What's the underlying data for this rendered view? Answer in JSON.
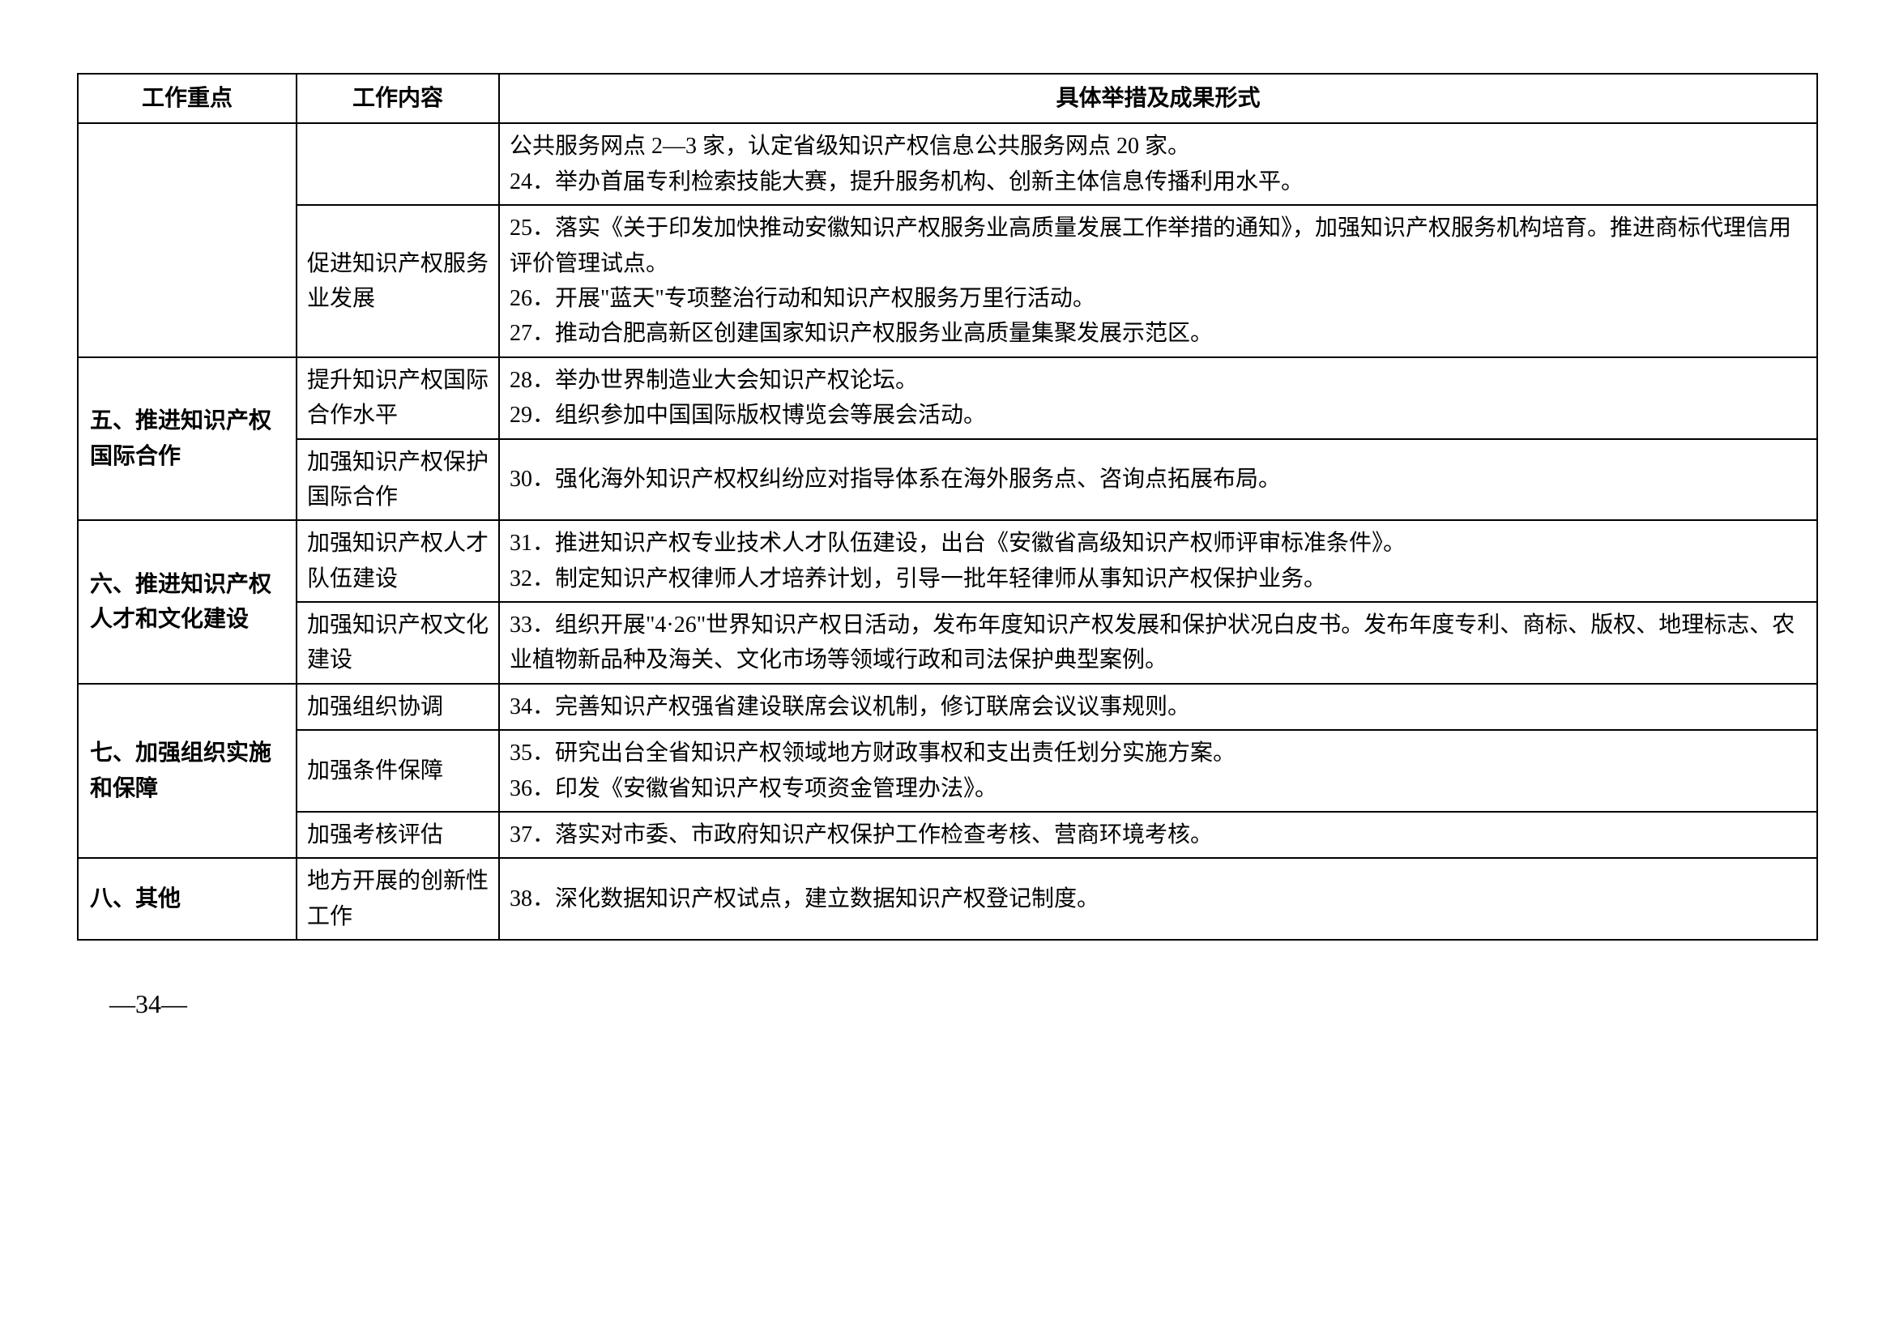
{
  "headers": {
    "focus": "工作重点",
    "content": "工作内容",
    "measures": "具体举措及成果形式"
  },
  "rows": [
    {
      "focus": "",
      "content": "",
      "measures": "公共服务网点 2—3 家，认定省级知识产权信息公共服务网点 20 家。\n24．举办首届专利检索技能大赛，提升服务机构、创新主体信息传播利用水平。",
      "focus_rowspan": 2,
      "has_focus": true,
      "has_content": true
    },
    {
      "content": "促进知识产权服务业发展",
      "measures": "25．落实《关于印发加快推动安徽知识产权服务业高质量发展工作举措的通知》，加强知识产权服务机构培育。推进商标代理信用评价管理试点。\n26．开展\"蓝天\"专项整治行动和知识产权服务万里行活动。\n27．推动合肥高新区创建国家知识产权服务业高质量集聚发展示范区。",
      "has_content": true
    },
    {
      "focus": "五、推进知识产权国际合作",
      "content": "提升知识产权国际合作水平",
      "measures": "28．举办世界制造业大会知识产权论坛。\n29．组织参加中国国际版权博览会等展会活动。",
      "focus_rowspan": 2,
      "has_focus": true,
      "has_content": true
    },
    {
      "content": "加强知识产权保护国际合作",
      "measures": "30．强化海外知识产权权纠纷应对指导体系在海外服务点、咨询点拓展布局。",
      "has_content": true
    },
    {
      "focus": "六、推进知识产权人才和文化建设",
      "content": "加强知识产权人才队伍建设",
      "measures": "31．推进知识产权专业技术人才队伍建设，出台《安徽省高级知识产权师评审标准条件》。\n32．制定知识产权律师人才培养计划，引导一批年轻律师从事知识产权保护业务。",
      "focus_rowspan": 2,
      "has_focus": true,
      "has_content": true
    },
    {
      "content": "加强知识产权文化建设",
      "measures": "33．组织开展\"4·26\"世界知识产权日活动，发布年度知识产权发展和保护状况白皮书。发布年度专利、商标、版权、地理标志、农业植物新品种及海关、文化市场等领域行政和司法保护典型案例。",
      "has_content": true
    },
    {
      "focus": "七、加强组织实施和保障",
      "content": "加强组织协调",
      "measures": "34．完善知识产权强省建设联席会议机制，修订联席会议议事规则。",
      "focus_rowspan": 3,
      "has_focus": true,
      "has_content": true
    },
    {
      "content": "加强条件保障",
      "measures": "35．研究出台全省知识产权领域地方财政事权和支出责任划分实施方案。\n36．印发《安徽省知识产权专项资金管理办法》。",
      "has_content": true
    },
    {
      "content": "加强考核评估",
      "measures": "37．落实对市委、市政府知识产权保护工作检查考核、营商环境考核。",
      "has_content": true
    },
    {
      "focus": "八、其他",
      "content": "地方开展的创新性工作",
      "measures": "38．深化数据知识产权试点，建立数据知识产权登记制度。",
      "focus_rowspan": 1,
      "has_focus": true,
      "has_content": true
    }
  ],
  "page_number": "—34—"
}
